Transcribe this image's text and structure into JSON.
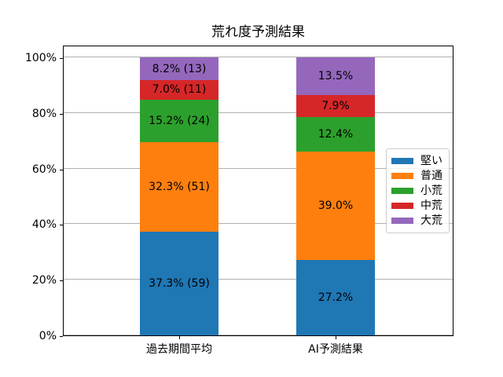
{
  "chart_data": {
    "type": "bar",
    "stacked": true,
    "title": "荒れ度予測結果",
    "categories": [
      "過去期間平均",
      "AI予測結果"
    ],
    "series": [
      {
        "name": "堅い",
        "color": "#1f77b4",
        "values": [
          37.3,
          27.2
        ],
        "counts": [
          59,
          null
        ],
        "labels": [
          "37.3% (59)",
          "27.2%"
        ]
      },
      {
        "name": "普通",
        "color": "#ff7f0e",
        "values": [
          32.3,
          39.0
        ],
        "counts": [
          51,
          null
        ],
        "labels": [
          "32.3% (51)",
          "39.0%"
        ]
      },
      {
        "name": "小荒",
        "color": "#2ca02c",
        "values": [
          15.2,
          12.4
        ],
        "counts": [
          24,
          null
        ],
        "labels": [
          "15.2% (24)",
          "12.4%"
        ]
      },
      {
        "name": "中荒",
        "color": "#d62728",
        "values": [
          7.0,
          7.9
        ],
        "counts": [
          11,
          null
        ],
        "labels": [
          "7.0% (11)",
          "7.9%"
        ]
      },
      {
        "name": "大荒",
        "color": "#9467bd",
        "values": [
          8.2,
          13.5
        ],
        "counts": [
          13,
          null
        ],
        "labels": [
          "8.2% (13)",
          "13.5%"
        ]
      }
    ],
    "stack_order_bottom_to_top": [
      "大荒",
      "中荒",
      "小荒",
      "普通",
      "堅い"
    ],
    "yticks": [
      "0%",
      "20%",
      "40%",
      "60%",
      "80%",
      "100%"
    ],
    "ylim": [
      0,
      105
    ],
    "xlabel": "",
    "ylabel": "",
    "grid": true,
    "grid_color": "#b0b0b0",
    "legend_position": "right",
    "legend_entries": [
      "堅い",
      "普通",
      "小荒",
      "中荒",
      "大荒"
    ],
    "label_text_color": "#000000",
    "background_color": "#ffffff"
  }
}
